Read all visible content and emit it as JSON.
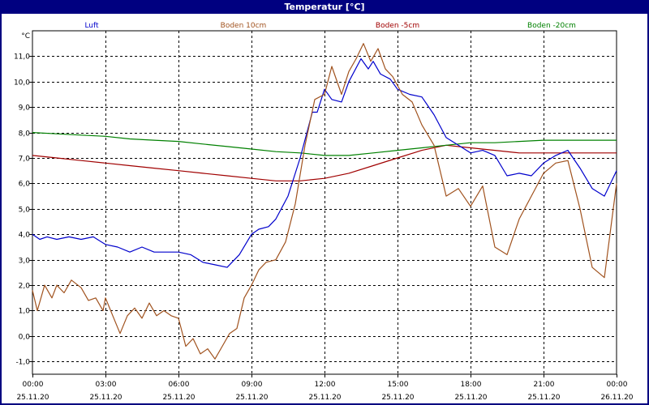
{
  "window": {
    "title": "Temperatur [°C]"
  },
  "chart_data": {
    "type": "line",
    "title": "Temperatur [°C]",
    "ylabel": "°C",
    "ylim": [
      -1.5,
      12.0
    ],
    "xlim": [
      0,
      24
    ],
    "grid": true,
    "legend": "top",
    "y_ticks": [
      -1.0,
      0.0,
      1.0,
      2.0,
      3.0,
      4.0,
      5.0,
      6.0,
      7.0,
      8.0,
      9.0,
      10.0,
      11.0
    ],
    "y_tick_labels": [
      "-1,0",
      "0,0",
      "1,0",
      "2,0",
      "3,0",
      "4,0",
      "5,0",
      "6,0",
      "7,0",
      "8,0",
      "9,0",
      "10,0",
      "11,0"
    ],
    "x_ticks": [
      0,
      3,
      6,
      9,
      12,
      15,
      18,
      21,
      24
    ],
    "x_tick_labels": [
      "00:00",
      "03:00",
      "06:00",
      "09:00",
      "12:00",
      "15:00",
      "18:00",
      "21:00",
      "00:00"
    ],
    "x_tick_dates": [
      "25.11.20",
      "25.11.20",
      "25.11.20",
      "25.11.20",
      "25.11.20",
      "25.11.20",
      "25.11.20",
      "25.11.20",
      "26.11.20"
    ],
    "series": [
      {
        "name": "Luft",
        "color": "#0000cc",
        "x": [
          0,
          0.3,
          0.6,
          1,
          1.5,
          2,
          2.5,
          3,
          3.5,
          4,
          4.5,
          5,
          5.5,
          6,
          6.5,
          7,
          7.5,
          8,
          8.5,
          9,
          9.3,
          9.7,
          10,
          10.5,
          11,
          11.5,
          11.7,
          12,
          12.3,
          12.7,
          13,
          13.5,
          13.8,
          14,
          14.3,
          14.7,
          15,
          15.5,
          16,
          16.5,
          17,
          17.5,
          18,
          18.5,
          19,
          19.5,
          20,
          20.5,
          21,
          21.5,
          22,
          22.5,
          23,
          23.5,
          24
        ],
        "y": [
          4.0,
          3.8,
          3.9,
          3.8,
          3.9,
          3.8,
          3.9,
          3.6,
          3.5,
          3.3,
          3.5,
          3.3,
          3.3,
          3.3,
          3.2,
          2.9,
          2.8,
          2.7,
          3.2,
          4.0,
          4.2,
          4.3,
          4.6,
          5.5,
          7.0,
          8.8,
          8.8,
          9.7,
          9.3,
          9.2,
          10.0,
          10.9,
          10.5,
          10.8,
          10.3,
          10.1,
          9.7,
          9.5,
          9.4,
          8.7,
          7.8,
          7.5,
          7.2,
          7.3,
          7.1,
          6.3,
          6.4,
          6.3,
          6.8,
          7.1,
          7.3,
          6.6,
          5.8,
          5.5,
          6.5
        ]
      },
      {
        "name": "Boden 10cm",
        "color": "#a0521e",
        "x": [
          0,
          0.2,
          0.5,
          0.8,
          1,
          1.3,
          1.6,
          2,
          2.3,
          2.6,
          2.9,
          3,
          3.3,
          3.6,
          3.9,
          4.2,
          4.5,
          4.8,
          5.1,
          5.4,
          5.7,
          6,
          6.3,
          6.6,
          6.9,
          7.2,
          7.5,
          7.8,
          8.1,
          8.4,
          8.7,
          9,
          9.3,
          9.6,
          10,
          10.4,
          10.8,
          11.2,
          11.6,
          12,
          12.3,
          12.7,
          13,
          13.3,
          13.6,
          13.9,
          14.2,
          14.5,
          14.8,
          15.2,
          15.6,
          16,
          16.5,
          17,
          17.5,
          18,
          18.5,
          19,
          19.5,
          20,
          20.5,
          21,
          21.5,
          22,
          22.5,
          23,
          23.5,
          24
        ],
        "y": [
          1.8,
          1.0,
          2.0,
          1.5,
          2.0,
          1.7,
          2.2,
          1.9,
          1.4,
          1.5,
          1.0,
          1.5,
          0.8,
          0.1,
          0.8,
          1.1,
          0.7,
          1.3,
          0.8,
          1.0,
          0.8,
          0.7,
          -0.4,
          -0.1,
          -0.7,
          -0.5,
          -0.9,
          -0.4,
          0.1,
          0.3,
          1.5,
          2.0,
          2.6,
          2.9,
          3.0,
          3.7,
          5.2,
          7.5,
          9.3,
          9.5,
          10.6,
          9.5,
          10.4,
          10.9,
          11.5,
          10.8,
          11.3,
          10.5,
          10.2,
          9.5,
          9.2,
          8.3,
          7.5,
          5.5,
          5.8,
          5.1,
          5.9,
          3.5,
          3.2,
          4.6,
          5.5,
          6.4,
          6.8,
          6.9,
          5.0,
          2.7,
          2.3,
          6.0
        ]
      },
      {
        "name": "Boden -5cm",
        "color": "#a00000",
        "x": [
          0,
          1,
          2,
          3,
          4,
          5,
          6,
          7,
          8,
          9,
          10,
          11,
          12,
          13,
          14,
          15,
          16,
          17,
          18,
          19,
          20,
          21,
          22,
          23,
          24
        ],
        "y": [
          7.1,
          7.0,
          6.9,
          6.8,
          6.7,
          6.6,
          6.5,
          6.4,
          6.3,
          6.2,
          6.1,
          6.1,
          6.2,
          6.4,
          6.7,
          7.0,
          7.3,
          7.5,
          7.4,
          7.3,
          7.2,
          7.2,
          7.2,
          7.2,
          7.2
        ]
      },
      {
        "name": "Boden -20cm",
        "color": "#008000",
        "x": [
          0,
          1,
          2,
          3,
          4,
          5,
          6,
          7,
          8,
          9,
          10,
          11,
          12,
          13,
          14,
          15,
          16,
          17,
          18,
          19,
          20,
          21,
          22,
          23,
          24
        ],
        "y": [
          8.0,
          7.95,
          7.9,
          7.85,
          7.75,
          7.7,
          7.65,
          7.55,
          7.45,
          7.35,
          7.25,
          7.2,
          7.1,
          7.1,
          7.2,
          7.3,
          7.4,
          7.5,
          7.6,
          7.6,
          7.65,
          7.7,
          7.7,
          7.7,
          7.7
        ]
      }
    ]
  }
}
